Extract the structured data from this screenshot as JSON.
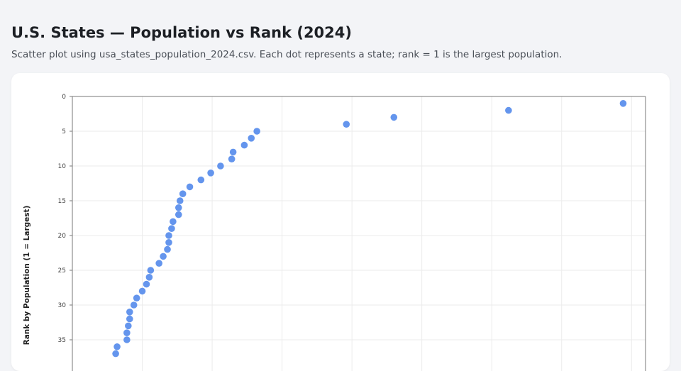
{
  "header": {
    "title": "U.S. States — Population vs Rank (2024)",
    "subtitle": "Scatter plot using usa_states_population_2024.csv. Each dot represents a state; rank = 1 is the largest population."
  },
  "colors": {
    "point": "#6495ed",
    "grid": "#ebebeb",
    "axis": "#777777"
  },
  "chart_data": {
    "type": "scatter",
    "title": "U.S. States — Population vs Rank (2024)",
    "xlabel": "",
    "ylabel": "Rank by Population (1 = Largest)",
    "xlim": [
      0,
      41
    ],
    "ylim": [
      0,
      50
    ],
    "y_inverted": true,
    "y_ticks": [
      0,
      5,
      10,
      15,
      20,
      25,
      30,
      35
    ],
    "grid": true,
    "points": [
      {
        "x": 39.4,
        "y": 1
      },
      {
        "x": 31.2,
        "y": 2
      },
      {
        "x": 23.0,
        "y": 3
      },
      {
        "x": 19.6,
        "y": 4
      },
      {
        "x": 13.2,
        "y": 5
      },
      {
        "x": 12.8,
        "y": 6
      },
      {
        "x": 12.3,
        "y": 7
      },
      {
        "x": 11.5,
        "y": 8
      },
      {
        "x": 11.4,
        "y": 9
      },
      {
        "x": 10.6,
        "y": 10
      },
      {
        "x": 9.9,
        "y": 11
      },
      {
        "x": 9.2,
        "y": 12
      },
      {
        "x": 8.4,
        "y": 13
      },
      {
        "x": 7.9,
        "y": 14
      },
      {
        "x": 7.7,
        "y": 15
      },
      {
        "x": 7.6,
        "y": 16
      },
      {
        "x": 7.6,
        "y": 17
      },
      {
        "x": 7.2,
        "y": 18
      },
      {
        "x": 7.1,
        "y": 19
      },
      {
        "x": 6.9,
        "y": 20
      },
      {
        "x": 6.9,
        "y": 21
      },
      {
        "x": 6.8,
        "y": 22
      },
      {
        "x": 6.5,
        "y": 23
      },
      {
        "x": 6.2,
        "y": 24
      },
      {
        "x": 5.6,
        "y": 25
      },
      {
        "x": 5.5,
        "y": 26
      },
      {
        "x": 5.3,
        "y": 27
      },
      {
        "x": 5.0,
        "y": 28
      },
      {
        "x": 4.6,
        "y": 29
      },
      {
        "x": 4.4,
        "y": 30
      },
      {
        "x": 4.1,
        "y": 31
      },
      {
        "x": 4.1,
        "y": 32
      },
      {
        "x": 4.0,
        "y": 33
      },
      {
        "x": 3.9,
        "y": 34
      },
      {
        "x": 3.9,
        "y": 35
      },
      {
        "x": 3.2,
        "y": 36
      },
      {
        "x": 3.1,
        "y": 37
      }
    ]
  }
}
